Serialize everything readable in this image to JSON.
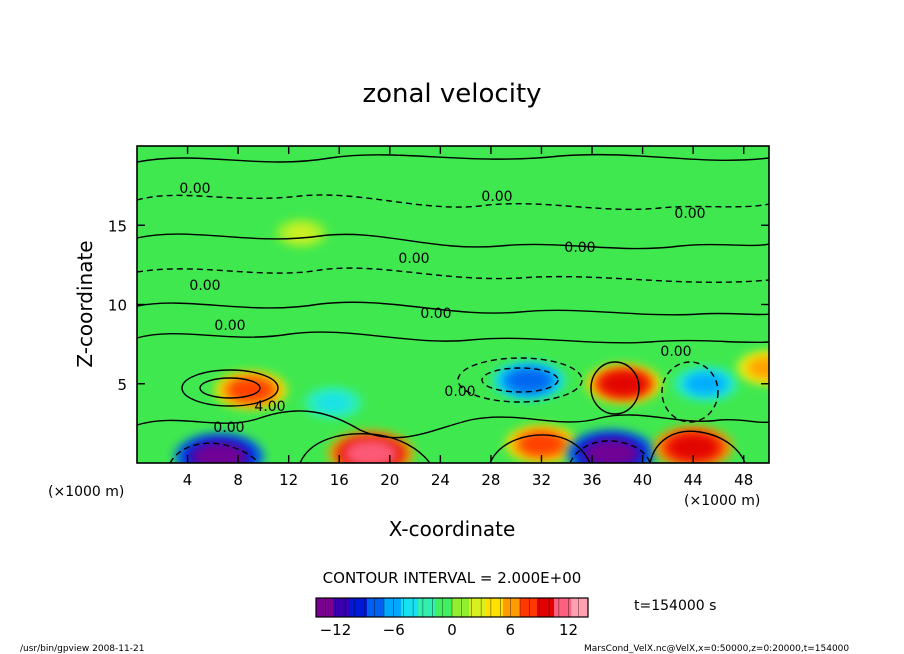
{
  "chart_data": {
    "type": "heatmap",
    "title": "zonal velocity",
    "xlabel": "X-coordinate",
    "ylabel": "Z-coordinate",
    "x_unit_left": "(×1000 m)",
    "x_unit_right": "(×1000 m)",
    "xlim": [
      0,
      50
    ],
    "ylim": [
      0,
      20
    ],
    "x_ticks": [
      4,
      8,
      12,
      16,
      20,
      24,
      28,
      32,
      36,
      40,
      44,
      48
    ],
    "y_ticks": [
      5,
      10,
      15
    ],
    "contour_interval_text": "CONTOUR INTERVAL = 2.000E+00",
    "contour_labels": [
      "0.00",
      "0.00",
      "0.00",
      "0.00",
      "0.00",
      "0.00",
      "0.00",
      "0.00",
      "0.00",
      "0.00",
      "4.00",
      "0.00"
    ],
    "colorbar": {
      "range": [
        -14,
        14
      ],
      "ticks": [
        -12,
        -6,
        0,
        6,
        12
      ],
      "colors": [
        "#7a0090",
        "#3a00b0",
        "#0018d8",
        "#0060f0",
        "#00a8ff",
        "#18e0f0",
        "#30f0b0",
        "#40f060",
        "#90f030",
        "#d8f020",
        "#ffe000",
        "#ff9a00",
        "#ff3800",
        "#e00000",
        "#ff6080",
        "#ffa0b0"
      ]
    },
    "time_label": "t=154000 s",
    "features": [
      {
        "x": 6.5,
        "z": 0.4,
        "value": -13
      },
      {
        "x": 9,
        "z": 4.6,
        "value": 8
      },
      {
        "x": 15.5,
        "z": 3.8,
        "value": -4
      },
      {
        "x": 18.5,
        "z": 0.6,
        "value": 12
      },
      {
        "x": 31,
        "z": 5.2,
        "value": -8
      },
      {
        "x": 32,
        "z": 1.2,
        "value": 8
      },
      {
        "x": 37.5,
        "z": 0.6,
        "value": -13
      },
      {
        "x": 38.5,
        "z": 5.0,
        "value": 9
      },
      {
        "x": 44,
        "z": 1.0,
        "value": 10
      },
      {
        "x": 45,
        "z": 5.0,
        "value": -6
      },
      {
        "x": 50,
        "z": 6.0,
        "value": 6
      },
      {
        "x": 13,
        "z": 14.5,
        "value": 2
      }
    ]
  },
  "footer": {
    "left": "/usr/bin/gpview   2008-11-21",
    "right": "MarsCond_VelX.nc@VelX,x=0:50000,z=0:20000,t=154000"
  }
}
